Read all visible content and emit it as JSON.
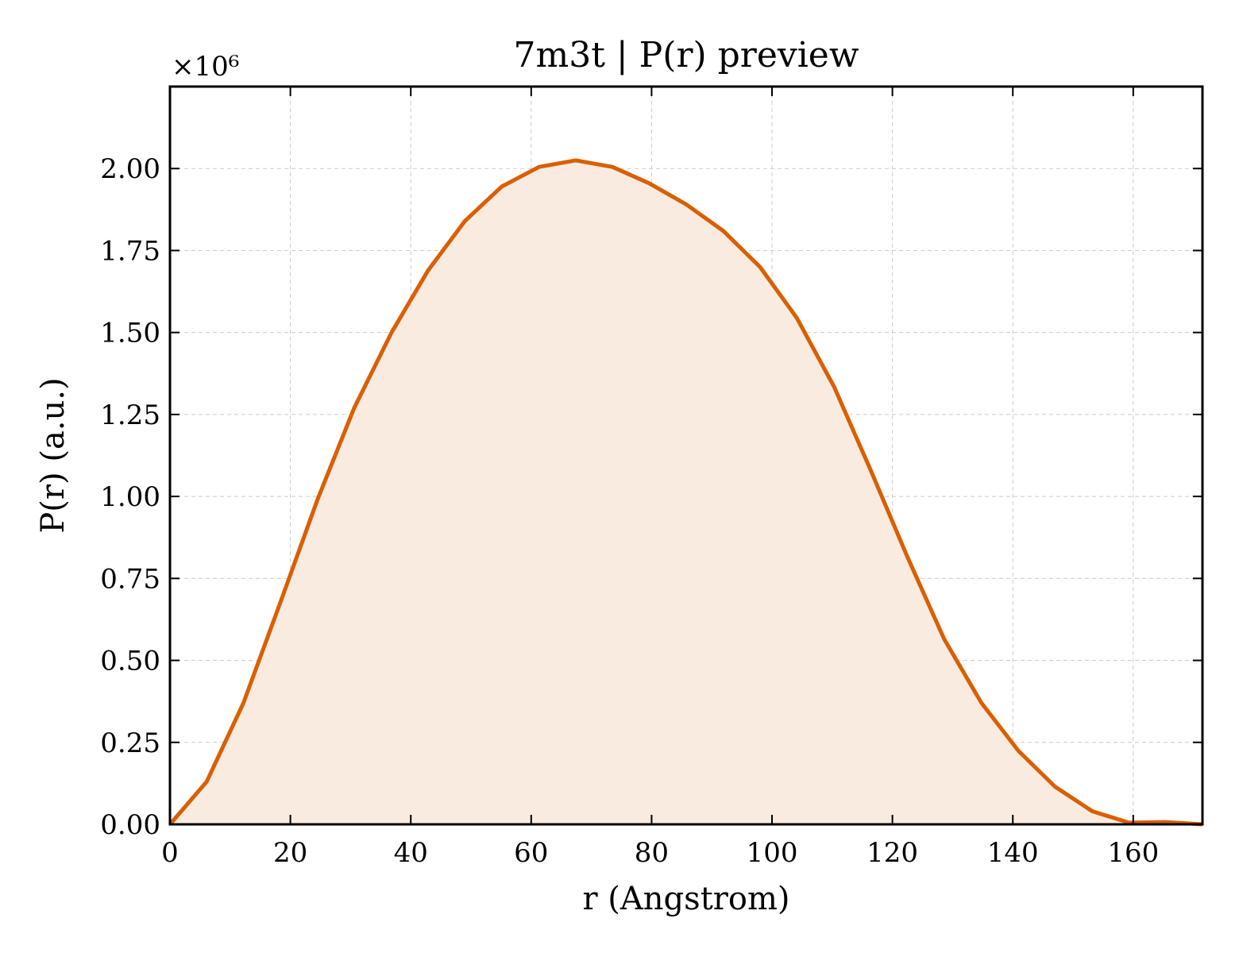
{
  "chart_data": {
    "type": "area",
    "title": "7m3t | P(r) preview",
    "xlabel": "r (Angstrom)",
    "ylabel": "P(r) (a.u.)",
    "y_multiplier_label": "×10⁶",
    "xlim": [
      0,
      171.5
    ],
    "ylim": [
      0,
      2.25
    ],
    "x_ticks": [
      0,
      20,
      40,
      60,
      80,
      100,
      120,
      140,
      160
    ],
    "x_tick_labels": [
      "0",
      "20",
      "40",
      "60",
      "80",
      "100",
      "120",
      "140",
      "160"
    ],
    "y_ticks": [
      0,
      0.25,
      0.5,
      0.75,
      1.0,
      1.25,
      1.5,
      1.75,
      2.0
    ],
    "y_tick_labels": [
      "0.00",
      "0.25",
      "0.50",
      "0.75",
      "1.00",
      "1.25",
      "1.50",
      "1.75",
      "2.00"
    ],
    "grid": true,
    "line_color": "#d95f02",
    "fill_color": "#f9ebe0",
    "series": [
      {
        "x": [
          0,
          6.1,
          12.2,
          18.4,
          24.5,
          30.6,
          36.8,
          42.9,
          49.0,
          55.1,
          61.3,
          67.4,
          73.5,
          79.6,
          85.8,
          91.9,
          98.0,
          104.1,
          110.3,
          116.4,
          122.5,
          128.6,
          134.8,
          140.9,
          147.0,
          153.2,
          159.3,
          165.4,
          171.5
        ],
        "values": [
          0.0,
          0.13,
          0.37,
          0.68,
          0.99,
          1.27,
          1.5,
          1.69,
          1.84,
          1.945,
          2.005,
          2.025,
          2.005,
          1.955,
          1.89,
          1.81,
          1.7,
          1.545,
          1.335,
          1.08,
          0.815,
          0.565,
          0.37,
          0.225,
          0.115,
          0.04,
          0.005,
          0.007,
          0.0
        ]
      }
    ]
  }
}
